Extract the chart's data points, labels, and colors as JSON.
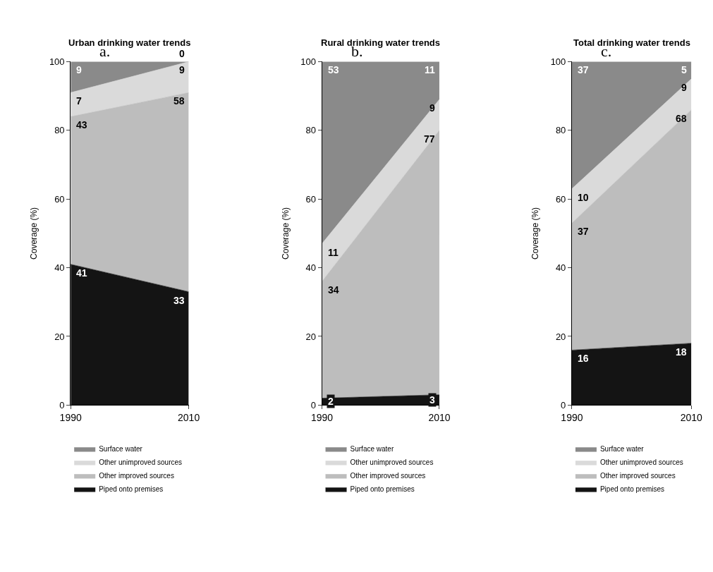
{
  "chart_data": [
    {
      "type": "area",
      "title": "Urban drinking water trends",
      "ylabel": "Coverage (%)",
      "annotations": [
        "a."
      ],
      "categories": [
        "1990",
        "2010"
      ],
      "ylim": [
        0,
        100
      ],
      "yticks": [
        0,
        20,
        40,
        60,
        80,
        100
      ],
      "stacked": true,
      "data_labels": true,
      "legend": "bottom",
      "grid": false,
      "series": [
        {
          "name": "Piped onto premises",
          "color": "#141414",
          "values": [
            41,
            33
          ]
        },
        {
          "name": "Other improved sources",
          "color": "#bdbdbd",
          "values": [
            43,
            58
          ]
        },
        {
          "name": "Other unimproved sources",
          "color": "#dadada",
          "values": [
            7,
            9
          ]
        },
        {
          "name": "Surface water",
          "color": "#8a8a8a",
          "values": [
            9,
            0
          ]
        }
      ]
    },
    {
      "type": "area",
      "title": "Rural drinking water trends",
      "ylabel": "Coverage (%)",
      "annotations": [
        "b."
      ],
      "categories": [
        "1990",
        "2010"
      ],
      "ylim": [
        0,
        100
      ],
      "yticks": [
        0,
        20,
        40,
        60,
        80,
        100
      ],
      "stacked": true,
      "data_labels": true,
      "legend": "bottom",
      "grid": false,
      "series": [
        {
          "name": "Piped onto premises",
          "color": "#141414",
          "values": [
            2,
            3
          ]
        },
        {
          "name": "Other improved sources",
          "color": "#bdbdbd",
          "values": [
            34,
            77
          ]
        },
        {
          "name": "Other unimproved sources",
          "color": "#dadada",
          "values": [
            11,
            9
          ]
        },
        {
          "name": "Surface water",
          "color": "#8a8a8a",
          "values": [
            53,
            11
          ]
        }
      ]
    },
    {
      "type": "area",
      "title": "Total drinking water trends",
      "ylabel": "Coverage (%)",
      "annotations": [
        "c."
      ],
      "categories": [
        "1990",
        "2010"
      ],
      "ylim": [
        0,
        100
      ],
      "yticks": [
        0,
        20,
        40,
        60,
        80,
        100
      ],
      "stacked": true,
      "data_labels": true,
      "legend": "bottom",
      "grid": false,
      "series": [
        {
          "name": "Piped onto premises",
          "color": "#141414",
          "values": [
            16,
            18
          ]
        },
        {
          "name": "Other improved sources",
          "color": "#bdbdbd",
          "values": [
            37,
            68
          ]
        },
        {
          "name": "Other unimproved sources",
          "color": "#dadada",
          "values": [
            10,
            9
          ]
        },
        {
          "name": "Surface water",
          "color": "#8a8a8a",
          "values": [
            37,
            5
          ]
        }
      ]
    }
  ]
}
